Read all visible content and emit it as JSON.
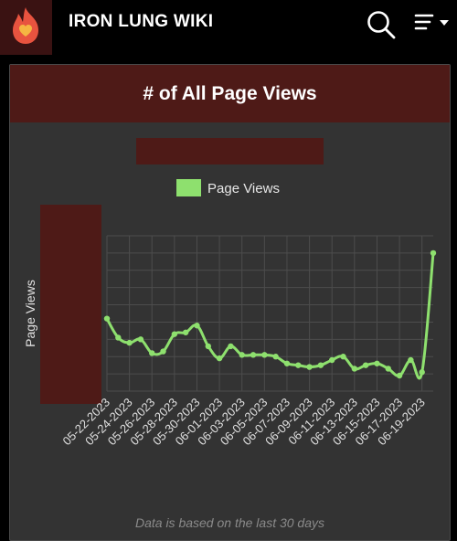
{
  "header": {
    "site_title": "IRON LUNG WIKI",
    "logo_icon": "flame-heart-icon",
    "search_icon": "search-icon",
    "menu_icon": "menu-dropdown-icon"
  },
  "card": {
    "title": "# of All Page Views",
    "footer_note": "Data is based on the last 30 days"
  },
  "colors": {
    "accent_dark_red": "#4e1a17",
    "line_green": "#8ee06e",
    "card_bg": "#333333"
  },
  "chart_data": {
    "type": "line",
    "ylabel": "Page Views",
    "legend": {
      "placement": "top-center"
    },
    "grid": true,
    "x": [
      "05-22-2023",
      "05-23-2023",
      "05-24-2023",
      "05-25-2023",
      "05-26-2023",
      "05-27-2023",
      "05-28-2023",
      "05-29-2023",
      "05-30-2023",
      "05-31-2023",
      "06-01-2023",
      "06-02-2023",
      "06-03-2023",
      "06-04-2023",
      "06-05-2023",
      "06-06-2023",
      "06-07-2023",
      "06-08-2023",
      "06-09-2023",
      "06-10-2023",
      "06-11-2023",
      "06-12-2023",
      "06-13-2023",
      "06-14-2023",
      "06-15-2023",
      "06-16-2023",
      "06-17-2023",
      "06-18-2023",
      "06-19-2023",
      "06-20-2023"
    ],
    "tick_labels": [
      "05-22-2023",
      "05-24-2023",
      "05-26-2023",
      "05-28-2023",
      "05-30-2023",
      "06-01-2023",
      "06-03-2023",
      "06-05-2023",
      "06-07-2023",
      "06-09-2023",
      "06-11-2023",
      "06-13-2023",
      "06-15-2023",
      "06-17-2023",
      "06-19-2023"
    ],
    "ylim": [
      0,
      9
    ],
    "series": [
      {
        "name": "Page Views",
        "color": "#8ee06e",
        "values": [
          4.2,
          3.1,
          2.8,
          3.0,
          2.2,
          2.3,
          3.3,
          3.4,
          3.8,
          2.6,
          1.9,
          2.6,
          2.1,
          2.1,
          2.1,
          2.0,
          1.6,
          1.5,
          1.4,
          1.5,
          1.8,
          2.0,
          1.3,
          1.5,
          1.6,
          1.3,
          0.9,
          1.8,
          1.1,
          8.0
        ]
      }
    ]
  }
}
